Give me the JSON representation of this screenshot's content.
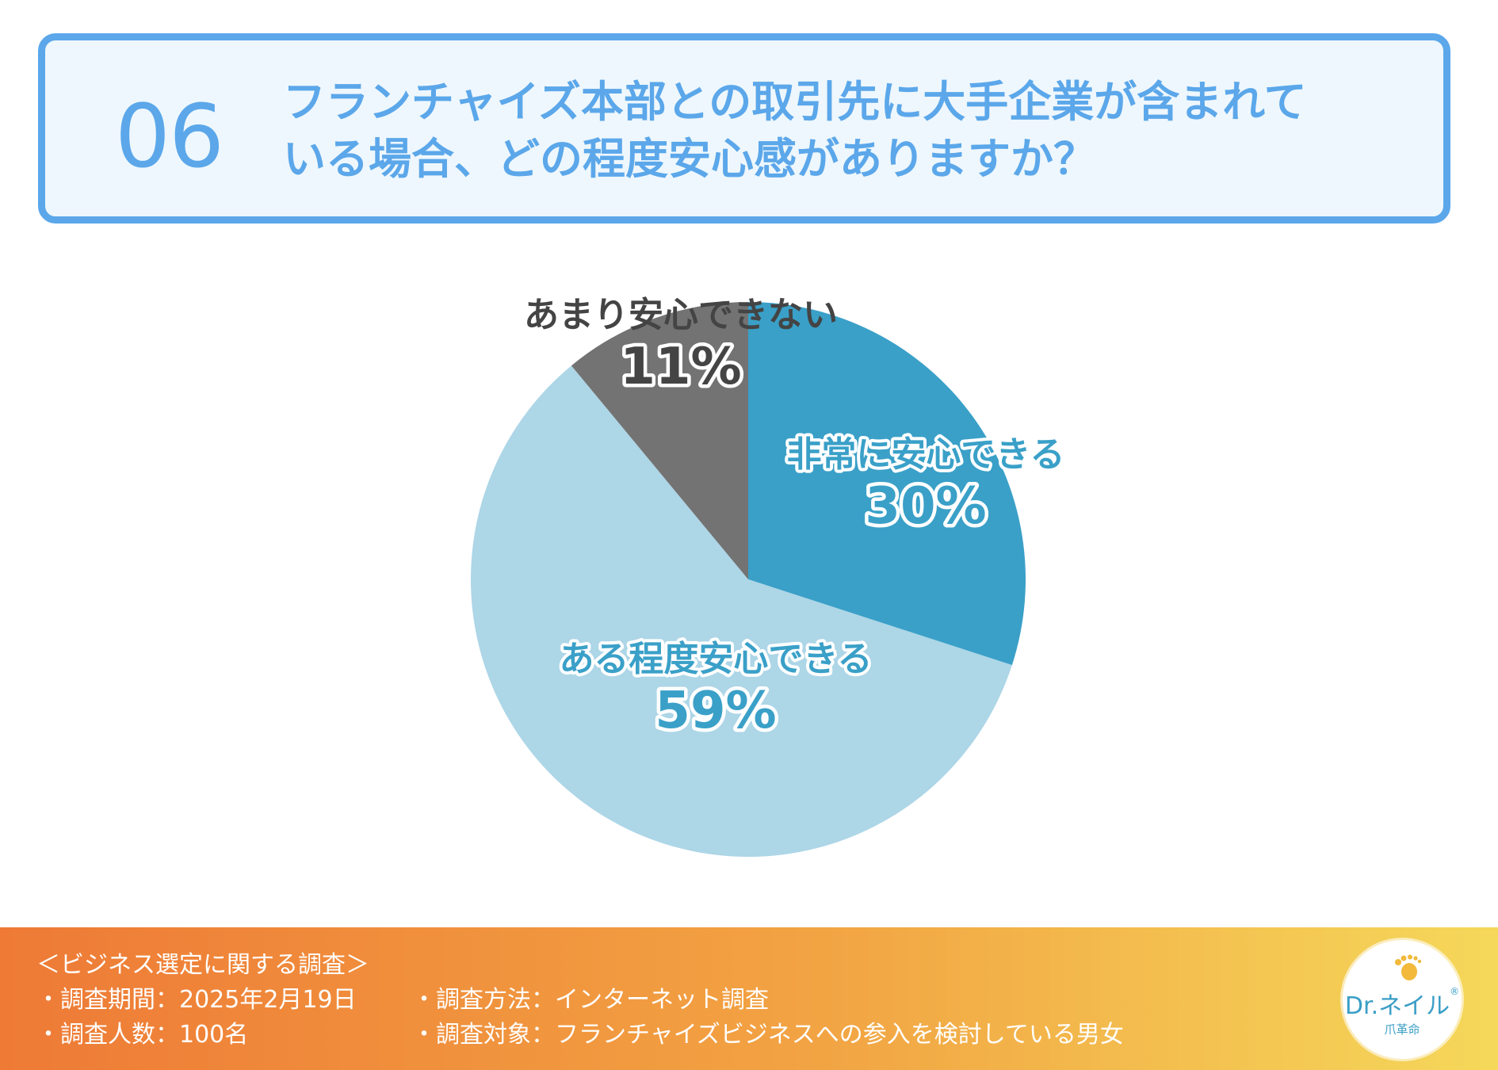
{
  "question": {
    "number": "06",
    "line1": "フランチャイズ本部との取引先に大手企業が含まれて",
    "line2": "いる場合、どの程度安心感がありますか？"
  },
  "chart_data": {
    "type": "pie",
    "start_angle_deg": 0,
    "direction": "clockwise",
    "slices": [
      {
        "label": "非常に安心できる",
        "value": 30,
        "display": "30%",
        "color": "#3aa0c8",
        "label_color": "#3aa0c8"
      },
      {
        "label": "ある程度安心できる",
        "value": 59,
        "display": "59%",
        "color": "#add6e7",
        "label_color": "#3aa0c8"
      },
      {
        "label": "あまり安心できない",
        "value": 11,
        "display": "11%",
        "color": "#737373",
        "label_color": "#444444"
      }
    ]
  },
  "footer": {
    "title": "＜ビジネス選定に関する調査＞",
    "period": "・調査期間：2025年2月19日",
    "method": "・調査方法：インターネット調査",
    "count": "・調査人数：100名",
    "target": "・調査対象：フランチャイズビジネスへの参入を検討している男女"
  },
  "logo": {
    "name": "Dr.ネイル",
    "registered": "®",
    "sub": "爪革命"
  },
  "colors": {
    "accent": "#5ba7ea",
    "box_bg": "#eef7fd"
  }
}
